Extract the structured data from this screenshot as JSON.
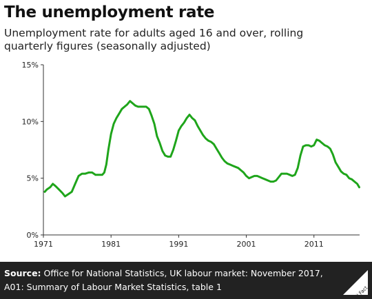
{
  "title": "The unemployment rate",
  "subtitle": "Unemployment rate for adults aged 16 and over, rolling quarterly figures (seasonally adjusted)",
  "footer": {
    "source_label": "Source:",
    "source_text": "Office for National Statistics, UK labour market: November 2017, A01: Summary of Labour Market Statistics, table 1",
    "logo_text": "Full Fact"
  },
  "colors": {
    "line": "#1fa51b",
    "footer_bg": "#222222",
    "axis": "#333333"
  },
  "chart_data": {
    "type": "line",
    "title": "The unemployment rate",
    "xlabel": "",
    "ylabel": "",
    "xlim": [
      1971,
      2017.75
    ],
    "ylim": [
      0,
      15
    ],
    "x_ticks": [
      1971,
      1981,
      1991,
      2001,
      2011
    ],
    "y_ticks": [
      0,
      5,
      10,
      15
    ],
    "y_tick_labels": [
      "0%",
      "5%",
      "10%",
      "15%"
    ],
    "grid": false,
    "legend": "none",
    "series": [
      {
        "name": "",
        "color": "#1fa51b",
        "x": [
          1971.2,
          1971.5,
          1972.0,
          1972.4,
          1972.8,
          1973.3,
          1973.8,
          1974.2,
          1974.7,
          1975.2,
          1975.7,
          1976.2,
          1976.7,
          1977.2,
          1977.7,
          1978.2,
          1978.7,
          1979.2,
          1979.7,
          1980.0,
          1980.3,
          1980.6,
          1981.0,
          1981.4,
          1981.8,
          1982.2,
          1982.6,
          1983.0,
          1983.4,
          1983.8,
          1984.2,
          1984.6,
          1985.0,
          1985.4,
          1985.8,
          1986.2,
          1986.6,
          1987.0,
          1987.4,
          1987.8,
          1988.2,
          1988.6,
          1989.0,
          1989.4,
          1989.8,
          1990.2,
          1990.6,
          1991.0,
          1991.4,
          1991.8,
          1992.2,
          1992.6,
          1993.0,
          1993.4,
          1993.8,
          1994.2,
          1994.6,
          1995.0,
          1995.4,
          1995.8,
          1996.2,
          1996.6,
          1997.0,
          1997.4,
          1997.8,
          1998.2,
          1998.6,
          1999.0,
          1999.4,
          1999.8,
          2000.2,
          2000.6,
          2001.0,
          2001.4,
          2001.8,
          2002.2,
          2002.6,
          2003.0,
          2003.4,
          2003.8,
          2004.2,
          2004.6,
          2005.0,
          2005.4,
          2005.8,
          2006.2,
          2006.6,
          2007.0,
          2007.4,
          2007.8,
          2008.2,
          2008.6,
          2009.0,
          2009.4,
          2009.8,
          2010.2,
          2010.6,
          2011.0,
          2011.4,
          2011.8,
          2012.2,
          2012.6,
          2013.0,
          2013.4,
          2013.8,
          2014.2,
          2014.6,
          2015.0,
          2015.4,
          2015.8,
          2016.2,
          2016.6,
          2017.0,
          2017.4,
          2017.7
        ],
        "values": [
          3.8,
          4.0,
          4.2,
          4.5,
          4.3,
          4.0,
          3.7,
          3.4,
          3.6,
          3.8,
          4.5,
          5.2,
          5.4,
          5.4,
          5.5,
          5.5,
          5.3,
          5.3,
          5.3,
          5.5,
          6.2,
          7.5,
          8.9,
          9.8,
          10.3,
          10.7,
          11.1,
          11.3,
          11.5,
          11.8,
          11.6,
          11.4,
          11.3,
          11.3,
          11.3,
          11.3,
          11.1,
          10.5,
          9.8,
          8.7,
          8.1,
          7.4,
          7.0,
          6.9,
          6.9,
          7.5,
          8.3,
          9.2,
          9.6,
          9.9,
          10.3,
          10.6,
          10.3,
          10.1,
          9.6,
          9.2,
          8.8,
          8.5,
          8.3,
          8.2,
          8.0,
          7.6,
          7.2,
          6.8,
          6.5,
          6.3,
          6.2,
          6.1,
          6.0,
          5.9,
          5.7,
          5.5,
          5.2,
          5.0,
          5.1,
          5.2,
          5.2,
          5.1,
          5.0,
          4.9,
          4.8,
          4.7,
          4.7,
          4.8,
          5.1,
          5.4,
          5.4,
          5.4,
          5.3,
          5.2,
          5.3,
          5.9,
          7.0,
          7.8,
          7.9,
          7.9,
          7.8,
          7.9,
          8.4,
          8.3,
          8.1,
          7.9,
          7.8,
          7.6,
          7.1,
          6.4,
          6.0,
          5.6,
          5.4,
          5.3,
          5.0,
          4.9,
          4.7,
          4.5,
          4.2
        ]
      }
    ]
  }
}
